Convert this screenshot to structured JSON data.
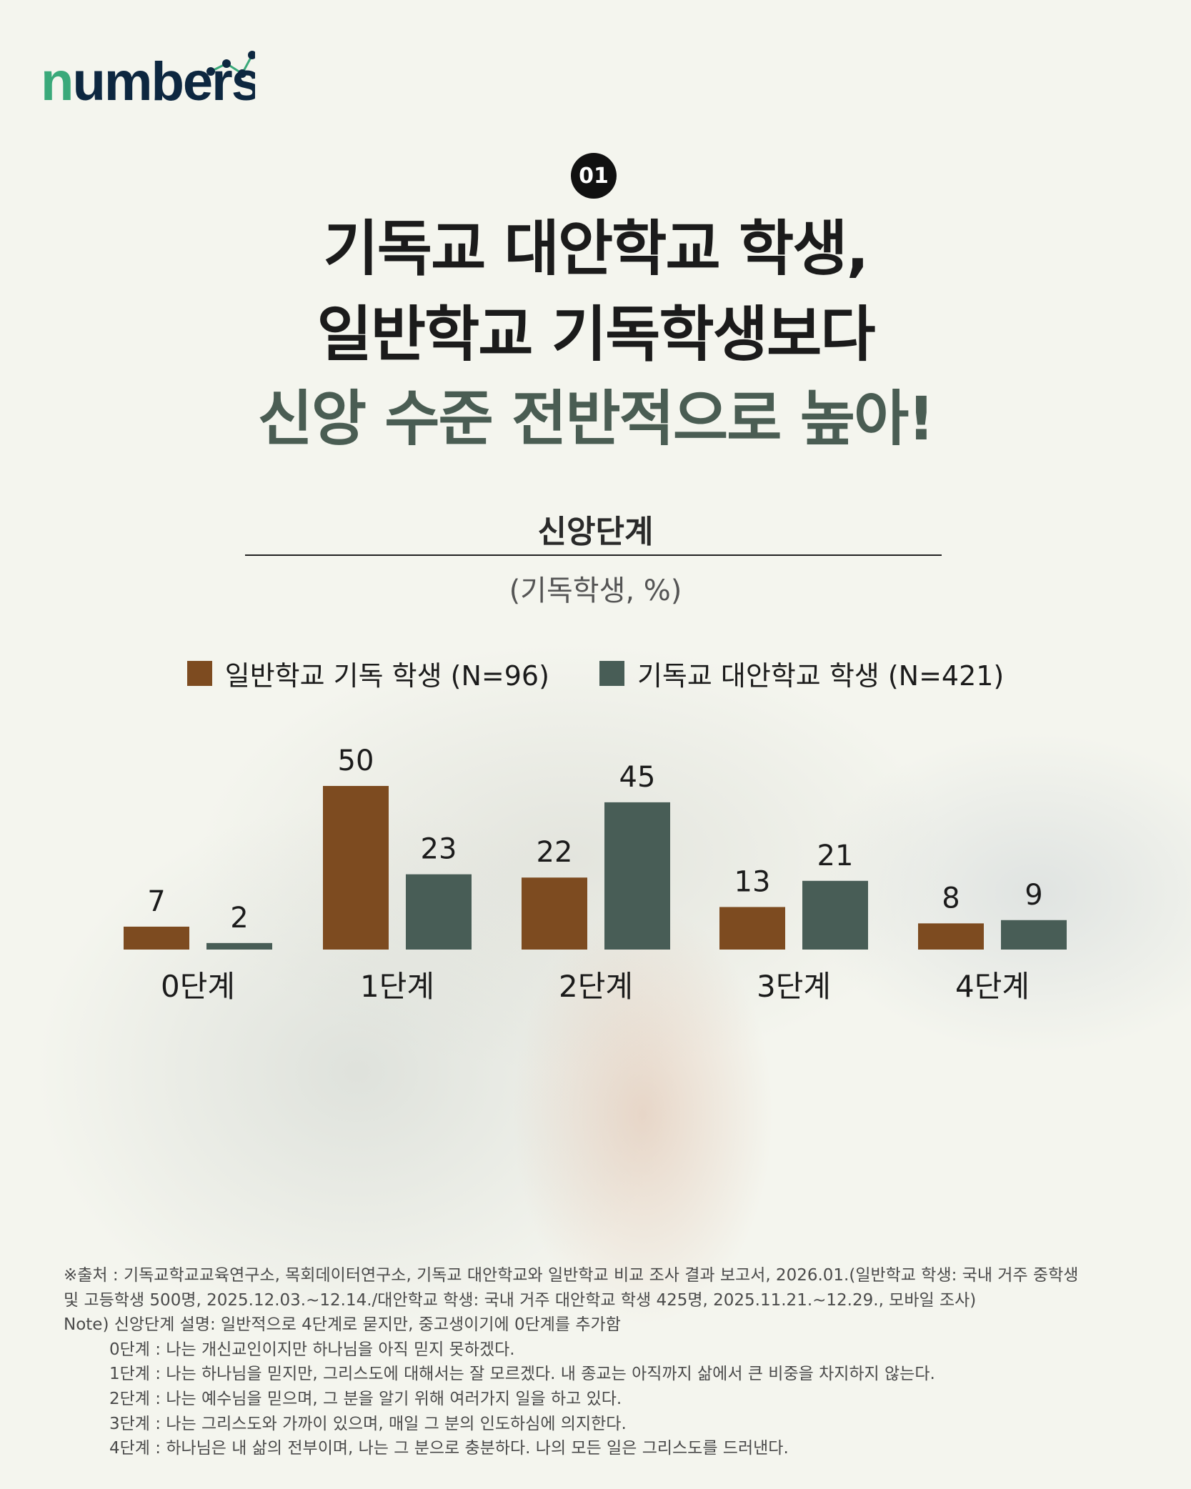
{
  "brand": {
    "logo_text": "numbers"
  },
  "badge": "01",
  "title": {
    "line1": "기독교 대안학교 학생,",
    "line2": "일반학교 기독학생보다",
    "line3": "신앙 수준 전반적으로 높아!"
  },
  "colors": {
    "series1": "#7d4b20",
    "series2": "#485d56",
    "accent_title": "#4a5d53",
    "background": "#f4f5ee"
  },
  "chart_data": {
    "type": "bar",
    "title": "신앙단계",
    "subtitle": "(기독학생, %)",
    "categories": [
      "0단계",
      "1단계",
      "2단계",
      "3단계",
      "4단계"
    ],
    "series": [
      {
        "name": "일반학교 기독 학생 (N=96)",
        "values": [
          7,
          50,
          22,
          13,
          8
        ],
        "color": "#7d4b20"
      },
      {
        "name": "기독교 대안학교 학생 (N=421)",
        "values": [
          2,
          23,
          45,
          21,
          9
        ],
        "color": "#485d56"
      }
    ],
    "ylim": [
      0,
      50
    ],
    "legend": "top",
    "grid": false,
    "data_labels": true
  },
  "notes": {
    "source_line1": "※출처 : 기독교학교교육연구소, 목회데이터연구소, 기독교 대안학교와 일반학교 비교 조사 결과 보고서, 2026.01.(일반학교 학생: 국내 거주 중학생",
    "source_line2": "및 고등학생 500명, 2025.12.03.~12.14./대안학교 학생: 국내 거주 대안학교 학생 425명, 2025.11.21.~12.29., 모바일 조사)",
    "note": "Note) 신앙단계 설명: 일반적으로 4단계로 묻지만, 중고생이기에 0단계를 추가함",
    "stages": [
      "0단계 : 나는 개신교인이지만 하나님을 아직 믿지 못하겠다.",
      "1단계 : 나는 하나님을 믿지만, 그리스도에 대해서는 잘 모르겠다. 내 종교는 아직까지 삶에서 큰 비중을 차지하지 않는다.",
      "2단계 : 나는 예수님을 믿으며, 그 분을 알기 위해 여러가지 일을 하고 있다.",
      "3단계 : 나는 그리스도와 가까이 있으며, 매일 그 분의 인도하심에 의지한다.",
      "4단계 : 하나님은 내 삶의 전부이며, 나는 그 분으로 충분하다. 나의 모든 일은 그리스도를 드러낸다."
    ]
  }
}
